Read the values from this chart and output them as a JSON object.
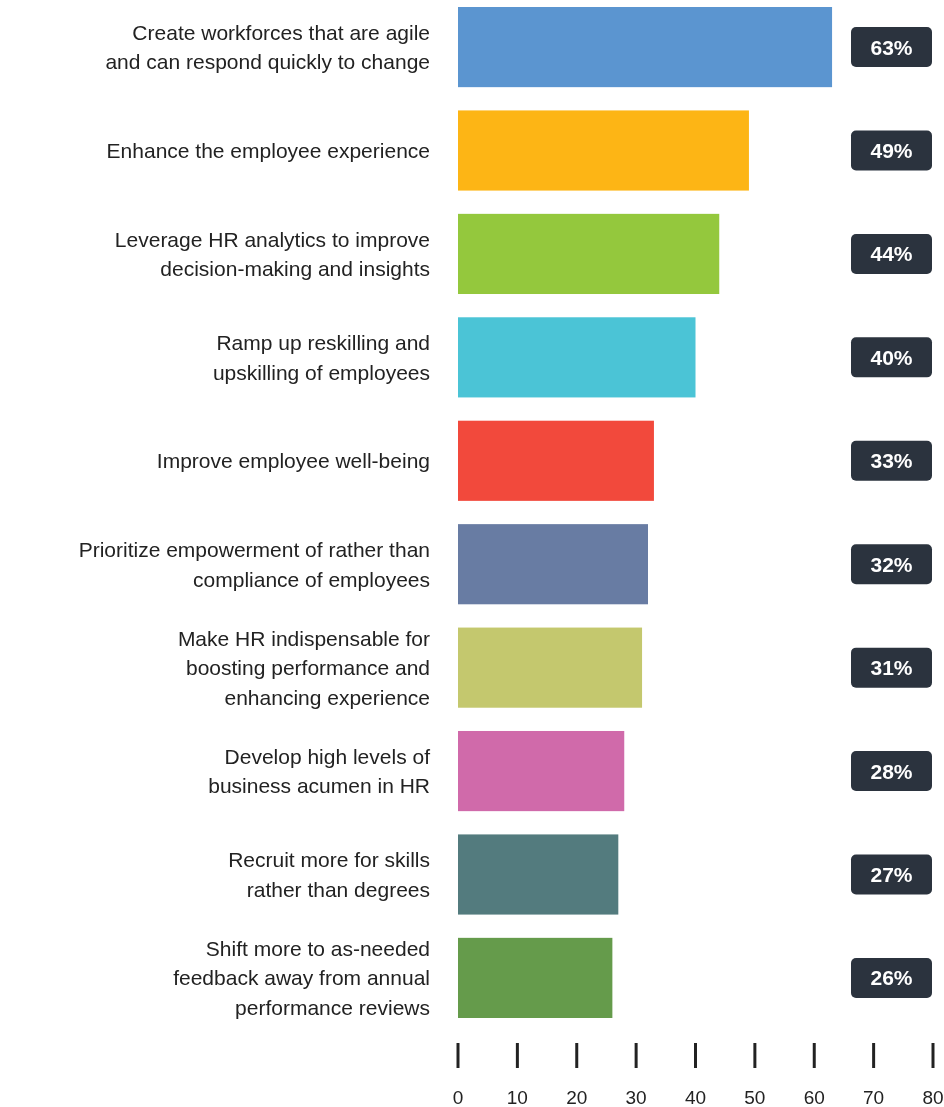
{
  "chart_data": {
    "type": "bar",
    "orientation": "horizontal",
    "categories": [
      "Create workforces that are agile\nand can respond quickly to change",
      "Enhance the employee experience",
      "Leverage HR analytics to improve\ndecision-making and insights",
      "Ramp up reskilling and\nupskilling of employees",
      "Improve employee well-being",
      "Prioritize empowerment of rather than\ncompliance of employees",
      "Make HR indispensable for\nboosting performance and\nenhancing experience",
      "Develop high levels of\nbusiness acumen in HR",
      "Recruit more for skills\nrather than degrees",
      "Shift more to as-needed\nfeedback away from annual\nperformance reviews"
    ],
    "values": [
      63,
      49,
      44,
      40,
      33,
      32,
      31,
      28,
      27,
      26
    ],
    "colors": [
      "#5b95d0",
      "#fdb515",
      "#94c83d",
      "#4bc4d6",
      "#f2493c",
      "#687ca3",
      "#c4c86e",
      "#d06aaa",
      "#537b7e",
      "#659b4b"
    ],
    "value_labels": [
      "63%",
      "49%",
      "44%",
      "40%",
      "33%",
      "32%",
      "31%",
      "28%",
      "27%",
      "26%"
    ],
    "xlim": [
      0,
      80
    ],
    "xticks": [
      0,
      10,
      20,
      30,
      40,
      50,
      60,
      70,
      80
    ]
  }
}
